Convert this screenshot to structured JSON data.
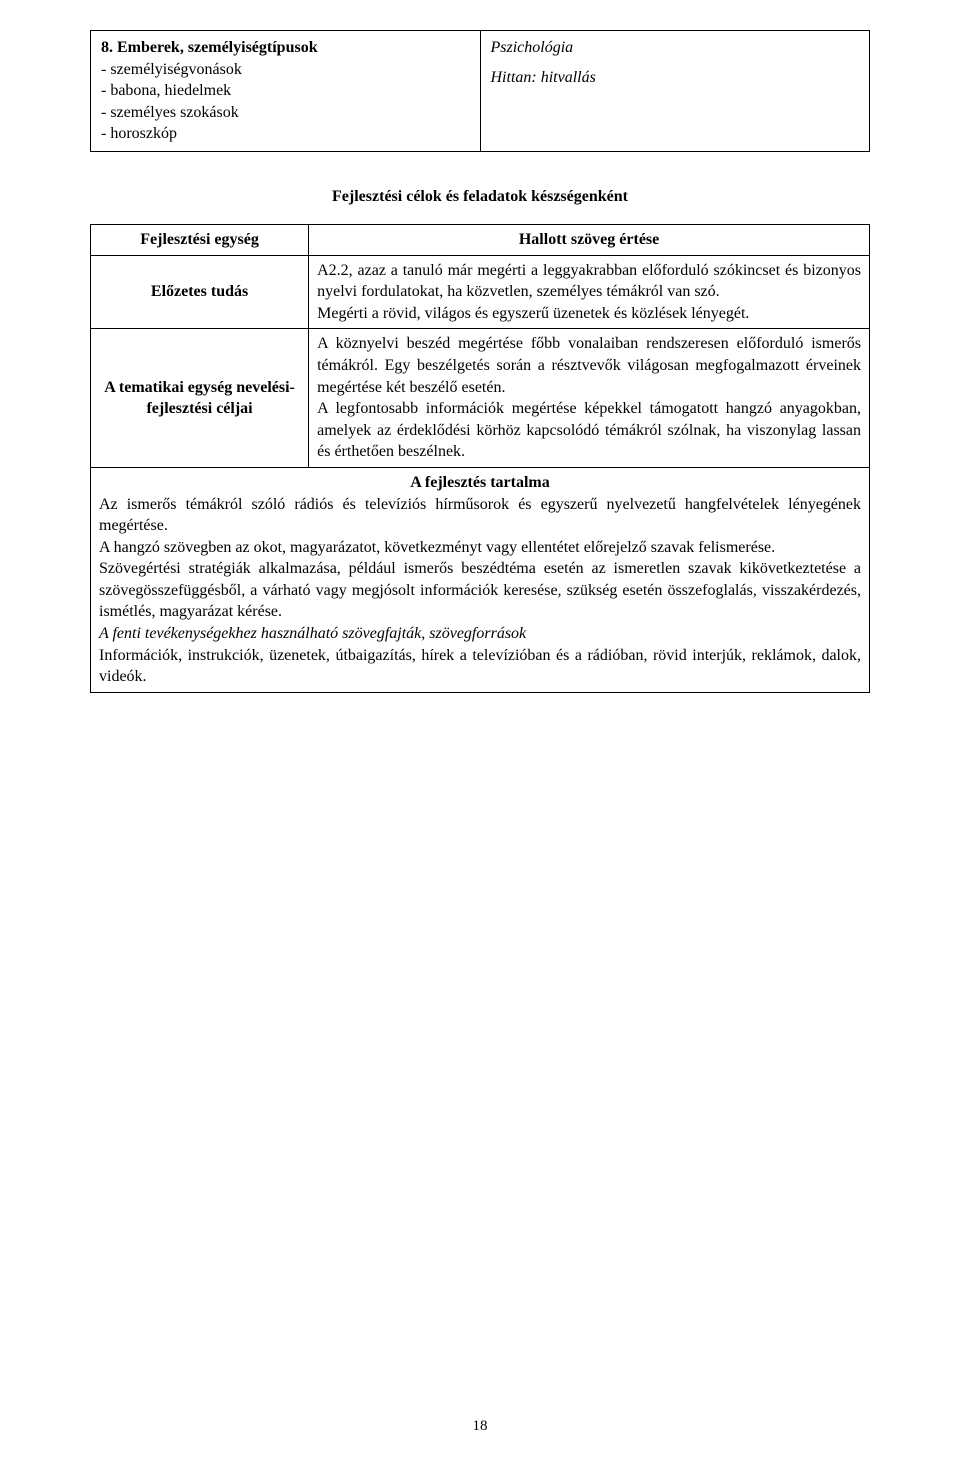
{
  "top_table": {
    "left_title": "8. Emberek, személyiségtípusok",
    "left_items": [
      "- személyiségvonások",
      "- babona, hiedelmek",
      "- személyes szokások",
      "- horoszkóp"
    ],
    "right_line1": "Pszichológia",
    "right_line2": "Hittan: hitvallás"
  },
  "section_heading": "Fejlesztési célok és feladatok készségenként",
  "main_table": {
    "row1": {
      "label": "Fejlesztési egység",
      "heading": "Hallott szöveg értése"
    },
    "row2": {
      "label": "Előzetes tudás",
      "body": "A2.2, azaz a tanuló már megérti a leggyakrabban előforduló szókincset és bizonyos nyelvi fordulatokat, ha közvetlen, személyes témákról van szó.\nMegérti a rövid, világos és egyszerű üzenetek és közlések lényegét."
    },
    "row3": {
      "label": "A tematikai egység nevelési-fejlesztési céljai",
      "body": "A köznyelvi beszéd megértése főbb vonalaiban rendszeresen előforduló ismerős témákról. Egy beszélgetés során a résztvevők világosan megfogalmazott érveinek megértése két beszélő esetén.\nA legfontosabb információk megértése képekkel támogatott hangzó anyagokban, amelyek az érdeklődési körhöz kapcsolódó témákról szólnak, ha viszonylag lassan és érthetően beszélnek."
    },
    "row4": {
      "heading": "A fejlesztés tartalma",
      "p1": "Az ismerős témákról szóló rádiós és televíziós hírműsorok és egyszerű nyelvezetű hangfelvételek lényegének megértése.",
      "p2": "A hangzó szövegben az okot, magyarázatot, következményt vagy ellentétet előrejelző szavak felismerése.",
      "p3": "Szövegértési stratégiák alkalmazása, például ismerős beszédtéma esetén az ismeretlen szavak kikövetkeztetése a szövegösszefüggésből, a várható vagy megjósolt információk keresése, szükség esetén összefoglalás, visszakérdezés, ismétlés, magyarázat kérése.",
      "p4_italic": "A fenti tevékenységekhez használható szövegfajták, szövegforrások",
      "p5": "Információk, instrukciók, üzenetek, útbaigazítás, hírek a televízióban és a rádióban, rövid interjúk, reklámok, dalok, videók."
    }
  },
  "page_number": "18"
}
